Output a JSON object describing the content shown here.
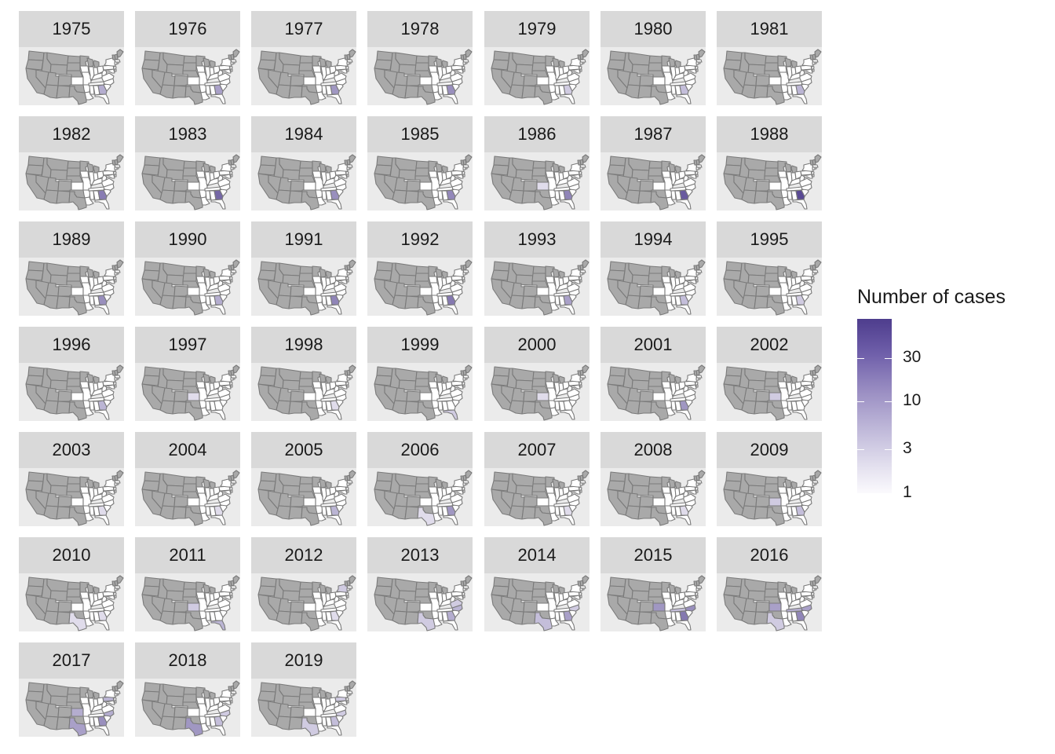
{
  "chart_data": {
    "type": "faceted-choropleth",
    "facet_variable": "year",
    "facets": [
      "1975",
      "1976",
      "1977",
      "1978",
      "1979",
      "1980",
      "1981",
      "1982",
      "1983",
      "1984",
      "1985",
      "1986",
      "1987",
      "1988",
      "1989",
      "1990",
      "1991",
      "1992",
      "1993",
      "1994",
      "1995",
      "1996",
      "1997",
      "1998",
      "1999",
      "2000",
      "2001",
      "2002",
      "2003",
      "2004",
      "2005",
      "2006",
      "2007",
      "2008",
      "2009",
      "2010",
      "2011",
      "2012",
      "2013",
      "2014",
      "2015",
      "2016",
      "2017",
      "2018",
      "2019"
    ],
    "map": "contiguous-us-states",
    "region_values": {
      "1975": {
        "GA": 6
      },
      "1976": {
        "GA": 8
      },
      "1977": {
        "GA": 10
      },
      "1978": {
        "GA": 12
      },
      "1979": {
        "GA": 3
      },
      "1980": {
        "GA": 4
      },
      "1981": {
        "GA": 5
      },
      "1982": {
        "GA": 18
      },
      "1983": {
        "GA": 30
      },
      "1984": {
        "GA": 12
      },
      "1985": {
        "GA": 14
      },
      "1986": {
        "GA": 15,
        "KS": 2
      },
      "1987": {
        "GA": 40
      },
      "1988": {
        "GA": 60
      },
      "1989": {
        "GA": 12
      },
      "1990": {
        "GA": 6
      },
      "1991": {
        "GA": 15
      },
      "1992": {
        "GA": 20
      },
      "1993": {
        "GA": 8
      },
      "1994": {
        "GA": 4
      },
      "1995": {
        "GA": 3
      },
      "1996": {
        "GA": 5
      },
      "1997": {
        "KS": 2
      },
      "1998": {
        "GA": 2
      },
      "1999": {
        "FL": 3
      },
      "2000": {
        "KS": 2
      },
      "2001": {
        "GA": 10
      },
      "2002": {
        "KS": 3
      },
      "2003": {
        "GA": 2
      },
      "2004": {
        "GA": 2
      },
      "2005": {
        "GA": 5
      },
      "2006": {
        "GA": 10,
        "TX": 2
      },
      "2007": {
        "GA": 2
      },
      "2008": {
        "GA": 2
      },
      "2009": {
        "GA": 4,
        "KS": 3
      },
      "2010": {
        "TX": 2,
        "GA": 2
      },
      "2011": {
        "KS": 3,
        "FL": 5
      },
      "2012": {
        "NY": 3,
        "GA": 2
      },
      "2013": {
        "TX": 3,
        "GA": 6,
        "NC": 5,
        "VA": 3
      },
      "2014": {
        "TX": 4,
        "GA": 8,
        "NC": 3
      },
      "2015": {
        "KS": 10,
        "GA": 20,
        "NC": 12,
        "TN": 4
      },
      "2016": {
        "KS": 8,
        "GA": 15,
        "NC": 8,
        "TN": 6,
        "TX": 3
      },
      "2017": {
        "KS": 6,
        "TX": 8,
        "GA": 12,
        "NC": 6,
        "PA": 5
      },
      "2018": {
        "TX": 10,
        "GA": 4,
        "NC": 3
      },
      "2019": {
        "TX": 3,
        "GA": 4,
        "NC": 3,
        "PA": 3
      }
    },
    "fill_scale": {
      "title": "Number of cases",
      "transform": "log10",
      "breaks": [
        1,
        3,
        10,
        30
      ],
      "limits": [
        1,
        80
      ],
      "low_color": "#fbfafd",
      "high_color": "#4e3d8d"
    },
    "no_data_color": "#a9a9a9",
    "zero_color": "#ffffff",
    "border_color": "#7a7a7a",
    "panel_background": "#ebebeb",
    "strip_background": "#d9d9d9",
    "legend_position": "right"
  }
}
